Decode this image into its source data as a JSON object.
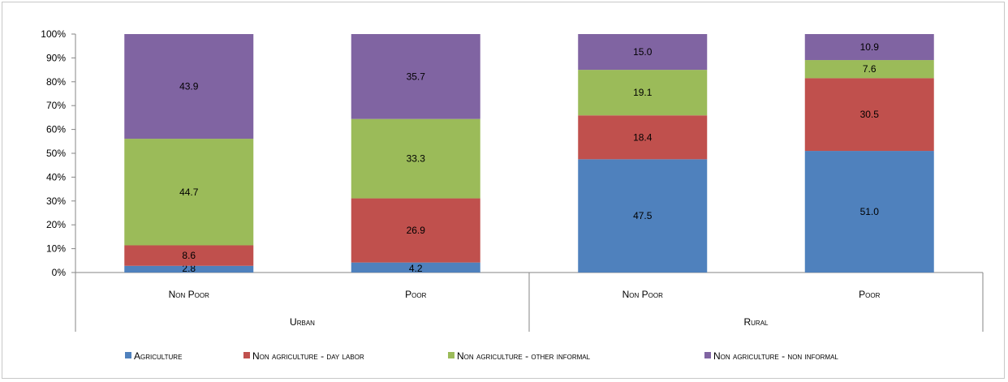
{
  "chart_data": {
    "type": "bar",
    "stacked": true,
    "percent": true,
    "groups": [
      {
        "name": "Urban",
        "categories": [
          "Non Poor",
          "Poor"
        ]
      },
      {
        "name": "Rural",
        "categories": [
          "Non Poor",
          "Poor"
        ]
      }
    ],
    "series": [
      {
        "name": "Agriculture",
        "color": "#4f81bd",
        "values": [
          2.8,
          4.2,
          47.5,
          51.0
        ],
        "labels": [
          "2.8",
          "4.2",
          "47.5",
          "51.0"
        ]
      },
      {
        "name": "Non agriculture - day labor",
        "color": "#c0504d",
        "values": [
          8.6,
          26.9,
          18.4,
          30.5
        ],
        "labels": [
          "8.6",
          "26.9",
          "18.4",
          "30.5"
        ]
      },
      {
        "name": "Non agriculture - other informal",
        "color": "#9bbb59",
        "values": [
          44.7,
          33.3,
          19.1,
          7.6
        ],
        "labels": [
          "44.7",
          "33.3",
          "19.1",
          "7.6"
        ]
      },
      {
        "name": "Non agriculture - non informal",
        "color": "#8064a2",
        "values": [
          43.9,
          35.7,
          15.0,
          10.9
        ],
        "labels": [
          "43.9",
          "35.7",
          "15.0",
          "10.9"
        ]
      }
    ],
    "yticks": [
      "0%",
      "10%",
      "20%",
      "30%",
      "40%",
      "50%",
      "60%",
      "70%",
      "80%",
      "90%",
      "100%"
    ],
    "ylim": [
      0,
      100
    ],
    "grid": false,
    "legend": "bottom"
  }
}
